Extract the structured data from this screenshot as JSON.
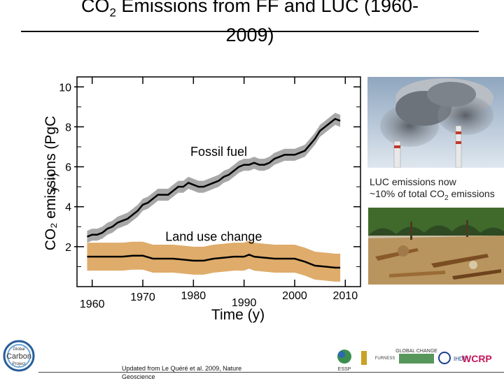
{
  "title": {
    "line1": "CO",
    "sub": "2",
    "line1_rest": " Emissions from FF and LUC (1960-",
    "line2": "2009)"
  },
  "axis": {
    "ylabel_main": "CO₂ emissions (PgC",
    "ylabel_unit": "y⁻¹)",
    "xlabel": "Time (y)"
  },
  "chart_data": {
    "type": "line",
    "title": "CO2 Emissions from FF and LUC (1960-2009)",
    "xlabel": "Time (y)",
    "ylabel": "CO2 emissions (PgC y-1)",
    "xlim": [
      1957,
      2013
    ],
    "ylim": [
      0,
      10.5
    ],
    "x_ticks": [
      "1960",
      "1970",
      "1980",
      "1990",
      "2000",
      "2010"
    ],
    "y_ticks": [
      "2",
      "4",
      "6",
      "8",
      "10"
    ],
    "series": [
      {
        "name": "Fossil fuel",
        "label": "Fossil fuel",
        "color": "#000000",
        "band_color": "#a8a8a8",
        "uncertainty": 0.3,
        "x": [
          1959,
          1960,
          1961,
          1962,
          1963,
          1964,
          1965,
          1966,
          1967,
          1968,
          1969,
          1970,
          1971,
          1972,
          1973,
          1974,
          1975,
          1976,
          1977,
          1978,
          1979,
          1980,
          1981,
          1982,
          1983,
          1984,
          1985,
          1986,
          1987,
          1988,
          1989,
          1990,
          1991,
          1992,
          1993,
          1994,
          1995,
          1996,
          1997,
          1998,
          1999,
          2000,
          2001,
          2002,
          2003,
          2004,
          2005,
          2006,
          2007,
          2008,
          2009
        ],
        "values": [
          2.5,
          2.6,
          2.6,
          2.7,
          2.9,
          3.0,
          3.2,
          3.3,
          3.4,
          3.6,
          3.8,
          4.1,
          4.2,
          4.4,
          4.6,
          4.6,
          4.6,
          4.8,
          5.0,
          5.0,
          5.2,
          5.1,
          5.0,
          5.0,
          5.1,
          5.2,
          5.3,
          5.5,
          5.6,
          5.8,
          6.0,
          6.1,
          6.1,
          6.2,
          6.1,
          6.1,
          6.2,
          6.4,
          6.5,
          6.6,
          6.6,
          6.6,
          6.7,
          6.8,
          7.1,
          7.4,
          7.8,
          8.0,
          8.2,
          8.4,
          8.3
        ]
      },
      {
        "name": "Land use change",
        "label": "Land use change",
        "color": "#000000",
        "band_color": "#dfac6b",
        "uncertainty": 0.7,
        "x": [
          1959,
          1960,
          1962,
          1964,
          1966,
          1968,
          1970,
          1972,
          1974,
          1976,
          1978,
          1980,
          1982,
          1984,
          1986,
          1988,
          1990,
          1991,
          1992,
          1994,
          1996,
          1998,
          2000,
          2002,
          2004,
          2006,
          2008,
          2009
        ],
        "values": [
          1.5,
          1.5,
          1.5,
          1.5,
          1.5,
          1.55,
          1.55,
          1.4,
          1.4,
          1.4,
          1.35,
          1.3,
          1.3,
          1.4,
          1.45,
          1.5,
          1.5,
          1.6,
          1.5,
          1.45,
          1.4,
          1.4,
          1.4,
          1.25,
          1.05,
          1.0,
          0.95,
          0.95
        ]
      }
    ]
  },
  "annotation": {
    "luc_note_line1": "LUC emissions now",
    "luc_note_line2_a": "~10% of total CO",
    "luc_note_sub": "2",
    "luc_note_line2_b": " emissions"
  },
  "footer": {
    "credit_line1": "Updated from Le Quéré et al. 2009, Nature",
    "credit_line2": "Geoscience",
    "gcp_logo_line1": "Global",
    "gcp_logo_line2": "Carbon",
    "gcp_logo_line3": "Project",
    "logos": [
      "ESSP",
      "FURNESS",
      "GLOBAL CHANGE",
      "IHDP",
      "WCRP"
    ]
  }
}
